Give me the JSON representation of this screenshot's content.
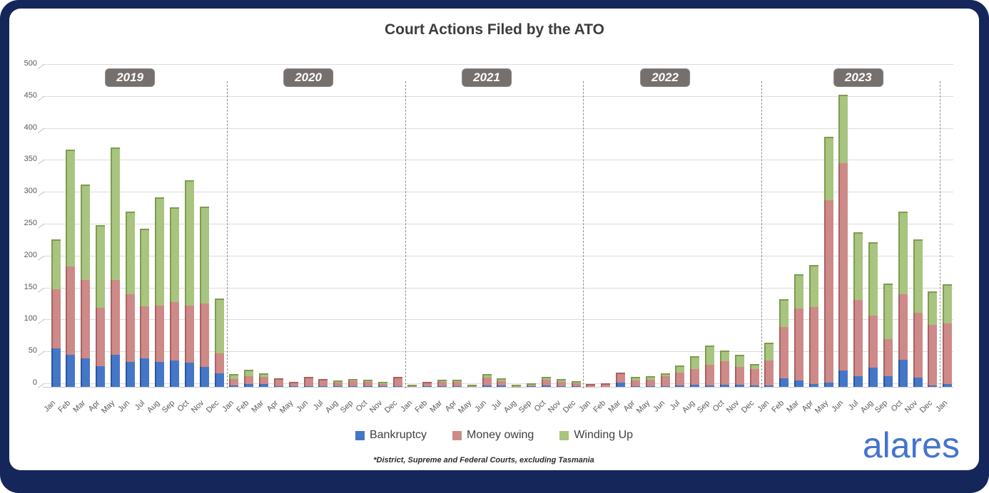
{
  "title": "Court Actions Filed by the ATO",
  "frame_color": "#15265B",
  "footnote": "*District, Supreme and Federal Courts, excluding Tasmania",
  "logo_text": "alares",
  "logo_color": "#4573D1",
  "year_badges": [
    {
      "label": "2019",
      "center_index": 5
    },
    {
      "label": "2020",
      "center_index": 17
    },
    {
      "label": "2021",
      "center_index": 29
    },
    {
      "label": "2022",
      "center_index": 41
    },
    {
      "label": "2023",
      "center_index": 54
    }
  ],
  "chart_data": {
    "type": "bar",
    "stacked": true,
    "title": "Court Actions Filed by the ATO",
    "xlabel": "",
    "ylabel": "",
    "ylim": [
      0,
      500
    ],
    "yticks": [
      0,
      50,
      100,
      150,
      200,
      250,
      300,
      350,
      400,
      450,
      500
    ],
    "grid": true,
    "legend_position": "bottom",
    "separators_after_index": [
      11,
      23,
      35,
      47,
      59
    ],
    "categories": [
      "Jan",
      "Feb",
      "Mar",
      "Apr",
      "May",
      "Jun",
      "Jul",
      "Aug",
      "Sep",
      "Oct",
      "Nov",
      "Dec",
      "Jan",
      "Feb",
      "Mar",
      "Apr",
      "May",
      "Jun",
      "Jul",
      "Aug",
      "Sep",
      "Oct",
      "Nov",
      "Dec",
      "Jan",
      "Feb",
      "Mar",
      "Apr",
      "May",
      "Jun",
      "Jul",
      "Aug",
      "Sep",
      "Oct",
      "Nov",
      "Dec",
      "Jan",
      "Feb",
      "Mar",
      "Apr",
      "May",
      "Jun",
      "Jul",
      "Aug",
      "Sep",
      "Oct",
      "Nov",
      "Dec",
      "Jan",
      "Feb",
      "Mar",
      "Apr",
      "May",
      "Jun",
      "Jul",
      "Aug",
      "Sep",
      "Oct",
      "Nov",
      "Dec",
      "Jan"
    ],
    "series": [
      {
        "name": "Bankruptcy",
        "color": "#4577C8",
        "edge_color": "#2C54A0",
        "values": [
          60,
          50,
          44,
          32,
          50,
          39,
          45,
          39,
          41,
          38,
          31,
          21,
          2,
          5,
          5,
          1,
          1,
          1,
          1,
          1,
          1,
          1,
          1,
          1,
          0,
          1,
          2,
          1,
          0,
          2,
          2,
          0,
          1,
          2,
          1,
          1,
          0,
          0,
          7,
          1,
          1,
          1,
          2,
          3,
          2,
          3,
          3,
          2,
          2,
          14,
          10,
          4,
          7,
          26,
          17,
          30,
          17,
          42,
          15,
          2,
          5
        ]
      },
      {
        "name": "Money owing",
        "color": "#CE8A88",
        "edge_color": "#A86260",
        "values": [
          92,
          138,
          122,
          91,
          117,
          106,
          81,
          88,
          91,
          89,
          99,
          32,
          12,
          14,
          12,
          12,
          7,
          14,
          11,
          7,
          10,
          9,
          5,
          15,
          2,
          7,
          7,
          9,
          2,
          14,
          8,
          1,
          3,
          10,
          8,
          7,
          4,
          5,
          15,
          11,
          12,
          17,
          21,
          26,
          34,
          38,
          29,
          27,
          40,
          80,
          113,
          121,
          284,
          322,
          119,
          82,
          58,
          102,
          101,
          96,
          95
        ]
      },
      {
        "name": "Winding Up",
        "color": "#A9C47F",
        "edge_color": "#7E9C51",
        "values": [
          76,
          180,
          147,
          127,
          204,
          127,
          119,
          167,
          146,
          193,
          149,
          84,
          6,
          8,
          4,
          0,
          0,
          0,
          0,
          2,
          1,
          1,
          2,
          0,
          1,
          0,
          2,
          1,
          1,
          4,
          3,
          2,
          1,
          3,
          3,
          1,
          0,
          0,
          0,
          4,
          4,
          3,
          10,
          19,
          28,
          15,
          18,
          6,
          26,
          42,
          51,
          64,
          96,
          104,
          103,
          112,
          85,
          127,
          112,
          50,
          59
        ]
      }
    ]
  }
}
